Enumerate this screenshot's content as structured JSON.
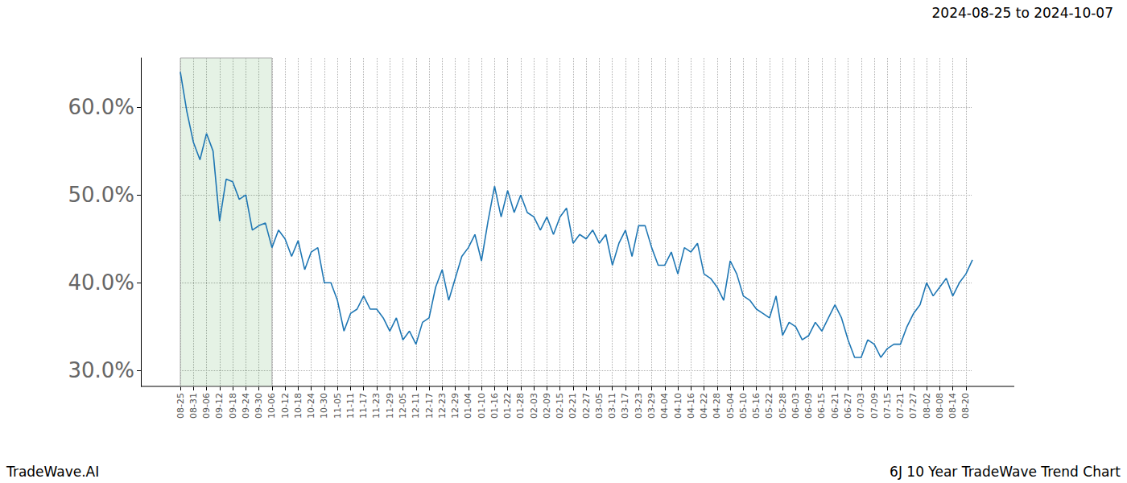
{
  "chart_data": {
    "type": "line",
    "title": "2024-08-25 to 2024-10-07",
    "annotations": [
      "TradeWave.AI",
      "6J 10 Year TradeWave Trend Chart"
    ],
    "categories": [
      "08-25",
      null,
      "08-31",
      null,
      "09-06",
      null,
      "09-12",
      null,
      "09-18",
      null,
      "09-24",
      null,
      "09-30",
      null,
      "10-06",
      null,
      "10-12",
      null,
      "10-18",
      null,
      "10-24",
      null,
      "10-30",
      null,
      "11-05",
      null,
      "11-11",
      null,
      "11-17",
      null,
      "11-23",
      null,
      "11-29",
      null,
      "12-05",
      null,
      "12-11",
      null,
      "12-17",
      null,
      "12-23",
      null,
      "12-29",
      null,
      "01-04",
      null,
      "01-10",
      null,
      "01-16",
      null,
      "01-22",
      null,
      "01-28",
      null,
      "02-03",
      null,
      "02-09",
      null,
      "02-15",
      null,
      "02-21",
      null,
      "02-27",
      null,
      "03-05",
      null,
      "03-11",
      null,
      "03-17",
      null,
      "03-23",
      null,
      "03-29",
      null,
      "04-04",
      null,
      "04-10",
      null,
      "04-16",
      null,
      "04-22",
      null,
      "04-28",
      null,
      "05-04",
      null,
      "05-10",
      null,
      "05-16",
      null,
      "05-22",
      null,
      "05-28",
      null,
      "06-03",
      null,
      "06-09",
      null,
      "06-15",
      null,
      "06-21",
      null,
      "06-27",
      null,
      "07-03",
      null,
      "07-09",
      null,
      "07-15",
      null,
      "07-21",
      null,
      "07-27",
      null,
      "08-02",
      null,
      "08-08",
      null,
      "08-14",
      null,
      "08-20",
      null
    ],
    "values": [
      64,
      59.5,
      56,
      54,
      57,
      55,
      47,
      51.8,
      51.5,
      49.5,
      50,
      46,
      46.5,
      46.8,
      44,
      46,
      45,
      43,
      44.8,
      41.5,
      43.5,
      44,
      40,
      40,
      38,
      34.5,
      36.5,
      37,
      38.5,
      37,
      37,
      36,
      34.5,
      36,
      33.5,
      34.5,
      33,
      35.5,
      36,
      39.5,
      41.5,
      38,
      40.5,
      43,
      44,
      45.5,
      42.5,
      47,
      51,
      47.5,
      50.5,
      48,
      50,
      48,
      47.5,
      46,
      47.5,
      45.5,
      47.5,
      48.5,
      44.5,
      45.5,
      45,
      46,
      44.5,
      45.5,
      42,
      44.5,
      46,
      43,
      46.5,
      46.5,
      44,
      42,
      42,
      43.5,
      41,
      44,
      43.5,
      44.5,
      41,
      40.5,
      39.5,
      38,
      42.5,
      41,
      38.5,
      38,
      37,
      36.5,
      36,
      38.5,
      34,
      35.5,
      35,
      33.5,
      34,
      35.5,
      34.5,
      36,
      37.5,
      36,
      33.5,
      31.5,
      31.5,
      33.5,
      33,
      31.5,
      32.5,
      33,
      33,
      35,
      36.5,
      37.5,
      40,
      38.5,
      39.5,
      40.5,
      38.5,
      40,
      41,
      42.6
    ],
    "color": "#1f77b4",
    "highlight": [
      "08-25",
      "10-06"
    ],
    "ylim": [
      28.2,
      65.6
    ],
    "yticks": [
      {
        "value": 30,
        "label": "30.0%"
      },
      {
        "value": 40,
        "label": "40.0%"
      },
      {
        "value": 50,
        "label": "50.0%"
      },
      {
        "value": 60,
        "label": "60.0%"
      }
    ],
    "grid": true
  }
}
